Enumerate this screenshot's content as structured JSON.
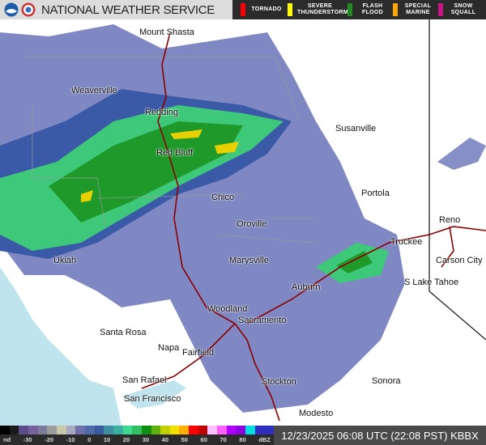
{
  "header": {
    "title": "NATIONAL WEATHER SERVICE",
    "logos": [
      "noaa-logo",
      "nws-logo"
    ]
  },
  "warnings": [
    {
      "label": "TORNADO",
      "color": "#ff0000"
    },
    {
      "label": "SEVERE THUNDERSTORM",
      "color": "#ffff00"
    },
    {
      "label": "FLASH FLOOD",
      "color": "#228b22"
    },
    {
      "label": "SPECIAL MARINE",
      "color": "#ffa500"
    },
    {
      "label": "SNOW SQUALL",
      "color": "#c71585"
    }
  ],
  "cities": [
    "Mount Shasta",
    "Weaverville",
    "Redding",
    "Susanville",
    "Red Bluff",
    "Chico",
    "Portola",
    "Oroville",
    "Reno",
    "Truckee",
    "Ukiah",
    "Marysville",
    "Carson City",
    "Auburn",
    "S Lake Tahoe",
    "Woodland",
    "Sacramento",
    "Santa Rosa",
    "Napa",
    "Fairfield",
    "San Rafael",
    "San Francisco",
    "Stockton",
    "Sonora",
    "Modesto"
  ],
  "legend": {
    "unit_label": "dBZ",
    "ticks": [
      "nd",
      "-30",
      "-20",
      "-10",
      "0",
      "10",
      "20",
      "30",
      "40",
      "50",
      "60",
      "70",
      "80",
      "dBZ"
    ],
    "colors": [
      "#000000",
      "#1a1a1a",
      "#5c4d8a",
      "#76639d",
      "#7b7b9c",
      "#9c9c9c",
      "#c8c8a8",
      "#a8a8c0",
      "#7070a8",
      "#4e6aa8",
      "#3a5aa0",
      "#3e8ea0",
      "#3cb0a0",
      "#40d890",
      "#30c060",
      "#109010",
      "#60b010",
      "#c0d000",
      "#f0e000",
      "#ffb000",
      "#ff0000",
      "#c00000",
      "#ffc0ff",
      "#ff60ff",
      "#b000ff",
      "#9000e0",
      "#00e0e0",
      "#3030c0",
      "#3030c0"
    ]
  },
  "timestamp": "12/23/2025 06:08 UTC (22:08 PST) KBBX",
  "colors": {
    "ocean": "#bfe4ee",
    "radar_light": "#6873b8",
    "radar_mid": "#3a5aa8",
    "radar_green1": "#3ec87a",
    "radar_green2": "#1f9a2a",
    "radar_yellow": "#e8d000",
    "highway": "#8b0000",
    "border": "#111"
  }
}
